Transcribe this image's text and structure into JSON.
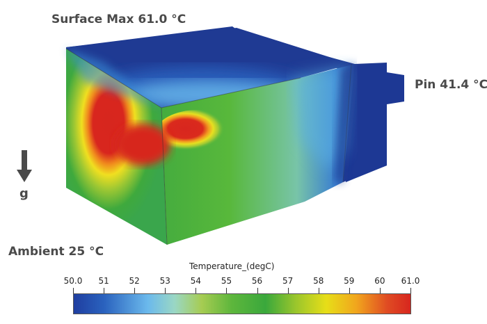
{
  "annotations": {
    "surface_max": "Surface Max 61.0 °C",
    "pin": "Pin 41.4 °C",
    "ambient": "Ambient 25 °C",
    "gravity": "g"
  },
  "icons": {
    "gravity": "down-arrow-icon"
  },
  "colorbar": {
    "title": "Temperature_(degC)",
    "ticks": [
      "50.0",
      "51",
      "52",
      "53",
      "54",
      "55",
      "56",
      "57",
      "58",
      "59",
      "60",
      "61.0"
    ],
    "range": [
      50.0,
      61.0
    ],
    "colormap": [
      "#1f3ea0",
      "#2a62be",
      "#6bb9ec",
      "#9ad7c4",
      "#a6cc52",
      "#5db63c",
      "#3aa83c",
      "#9bc62c",
      "#e7de18",
      "#f1a51d",
      "#e04c23",
      "#d7261e"
    ]
  },
  "colors": {
    "text_annotation": "#4a4a4a",
    "cold": "#1f3a93",
    "hot": "#d7261e"
  }
}
